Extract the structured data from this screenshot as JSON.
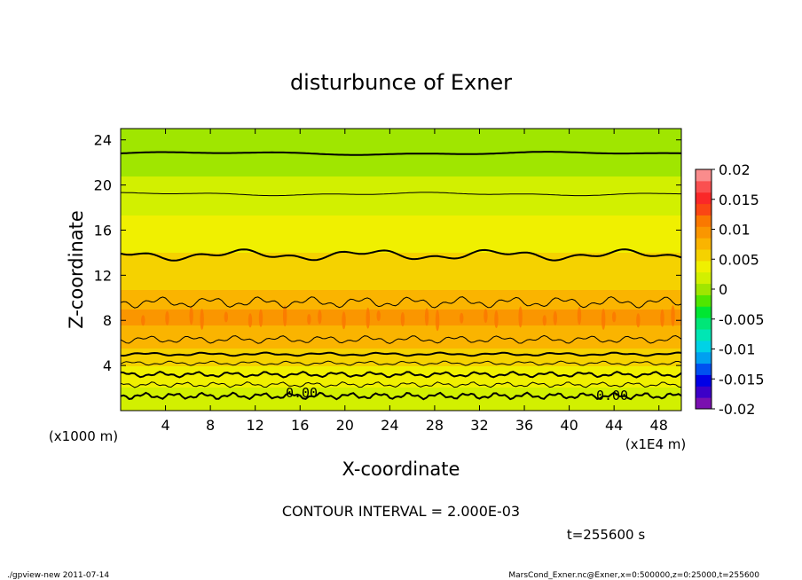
{
  "chart_data": {
    "type": "heatmap",
    "title": "disturbunce of Exner",
    "xlabel": "X-coordinate",
    "ylabel": "Z-coordinate",
    "x_unit": "(x1E4 m)",
    "y_unit": "(x1000 m)",
    "xlim": [
      0,
      50
    ],
    "ylim": [
      0,
      25
    ],
    "x_ticks": [
      4,
      8,
      12,
      16,
      20,
      24,
      28,
      32,
      36,
      40,
      44,
      48
    ],
    "y_ticks": [
      4,
      8,
      12,
      16,
      20,
      24
    ],
    "colorbar": {
      "ticks": [
        "0.02",
        "0.015",
        "0.01",
        "0.005",
        "0",
        "-0.005",
        "-0.01",
        "-0.015",
        "-0.02"
      ],
      "range": [
        -0.02,
        0.02
      ],
      "levels": 20
    },
    "z_profile": [
      [
        0.0,
        0.0035
      ],
      [
        1.0,
        0.0025
      ],
      [
        2.0,
        0.004
      ],
      [
        3.0,
        0.005
      ],
      [
        4.0,
        0.006
      ],
      [
        5.0,
        0.0075
      ],
      [
        6.0,
        0.0085
      ],
      [
        7.0,
        0.0095
      ],
      [
        8.0,
        0.0105
      ],
      [
        9.0,
        0.01
      ],
      [
        10.0,
        0.0085
      ],
      [
        11.0,
        0.0078
      ],
      [
        12.0,
        0.0072
      ],
      [
        13.0,
        0.0066
      ],
      [
        14.0,
        0.006
      ],
      [
        15.0,
        0.0054
      ],
      [
        16.0,
        0.0048
      ],
      [
        17.0,
        0.0042
      ],
      [
        18.0,
        0.0036
      ],
      [
        19.0,
        0.003
      ],
      [
        20.0,
        0.0024
      ],
      [
        21.0,
        0.0019
      ],
      [
        22.0,
        0.0014
      ],
      [
        23.0,
        0.001
      ],
      [
        24.0,
        0.0006
      ],
      [
        25.0,
        0.0003
      ]
    ],
    "contour_interval": "CONTOUR INTERVAL = 2.000E-03",
    "contour_labels": [
      "0.00",
      "0.00"
    ],
    "grid": false,
    "legend": "right"
  },
  "annotations": {
    "interval_text": "CONTOUR INTERVAL = 2.000E-03",
    "time_text": "t=255600 s",
    "footer_left": "./gpview-new  2011-07-14",
    "footer_right": "MarsCond_Exner.nc@Exner,x=0:500000,z=0:25000,t=255600"
  },
  "palette": {
    "colors": [
      "#7a10b0",
      "#3c00c8",
      "#0000e6",
      "#0050f0",
      "#00a0f0",
      "#00d2e6",
      "#00e6b4",
      "#00e678",
      "#00e632",
      "#50e600",
      "#a0e600",
      "#d2f000",
      "#f0f000",
      "#f5d200",
      "#fab400",
      "#fa9600",
      "#fa7800",
      "#fa4614",
      "#fa2828",
      "#fa5050",
      "#fa8c8c"
    ]
  }
}
